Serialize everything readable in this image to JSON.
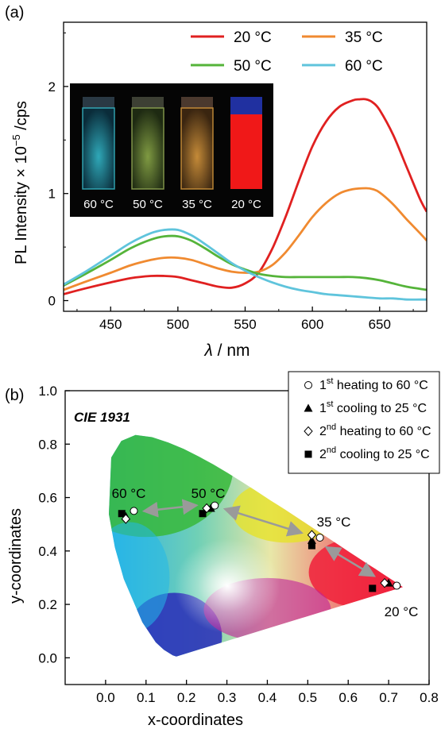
{
  "panel_a": {
    "label": "(a)",
    "inset_labels": [
      "60 °C",
      "50 °C",
      "35 °C",
      "20 °C"
    ],
    "colors": {
      "inset_bg": "#050505"
    }
  },
  "panel_b": {
    "label": "(b)",
    "cie_label": "CIE 1931",
    "temperature_labels": [
      "60 °C",
      "50 °C",
      "35 °C",
      "20 °C"
    ],
    "legend": [
      {
        "marker": "open-circle",
        "pre": "1",
        "sup": "st",
        "post": " heating to 60 °C"
      },
      {
        "marker": "filled-triangle",
        "pre": "1",
        "sup": "st",
        "post": " cooling to 25 °C"
      },
      {
        "marker": "open-diamond",
        "pre": "2",
        "sup": "nd",
        "post": " heating to 60 °C"
      },
      {
        "marker": "filled-square",
        "pre": "2",
        "sup": "nd",
        "post": " cooling to 25 °C"
      }
    ]
  },
  "chart_data": [
    {
      "type": "line",
      "xlabel_symbol": "λ",
      "xlabel_rest": " / nm",
      "ylabel_pre": "PL Intensity × 10",
      "ylabel_sup": "−5",
      "ylabel_post": " /cps",
      "xlim": [
        415,
        685
      ],
      "ylim": [
        -0.1,
        2.6
      ],
      "xticks": [
        450,
        500,
        550,
        600,
        650
      ],
      "yticks": [
        0,
        1,
        2
      ],
      "legend_position": "top-right",
      "series": [
        {
          "name": "20 °C",
          "color": "#e02020",
          "x": [
            415,
            430,
            450,
            465,
            480,
            490,
            500,
            510,
            520,
            530,
            540,
            550,
            560,
            570,
            580,
            590,
            600,
            610,
            620,
            630,
            635,
            640,
            645,
            650,
            660,
            670,
            680,
            685
          ],
          "y": [
            0.06,
            0.11,
            0.17,
            0.21,
            0.23,
            0.23,
            0.22,
            0.19,
            0.16,
            0.13,
            0.12,
            0.16,
            0.26,
            0.48,
            0.78,
            1.12,
            1.44,
            1.67,
            1.81,
            1.87,
            1.88,
            1.88,
            1.85,
            1.78,
            1.55,
            1.25,
            0.95,
            0.83
          ]
        },
        {
          "name": "35 °C",
          "color": "#f08a30",
          "x": [
            415,
            430,
            450,
            465,
            480,
            490,
            500,
            510,
            520,
            530,
            540,
            550,
            560,
            570,
            580,
            590,
            600,
            610,
            620,
            630,
            640,
            645,
            650,
            660,
            670,
            680,
            685
          ],
          "y": [
            0.1,
            0.17,
            0.26,
            0.33,
            0.38,
            0.4,
            0.4,
            0.38,
            0.34,
            0.3,
            0.27,
            0.26,
            0.27,
            0.33,
            0.45,
            0.61,
            0.78,
            0.91,
            1.0,
            1.04,
            1.05,
            1.04,
            1.01,
            0.9,
            0.76,
            0.63,
            0.56
          ]
        },
        {
          "name": "50 °C",
          "color": "#55b43a",
          "x": [
            415,
            430,
            450,
            465,
            480,
            490,
            500,
            510,
            520,
            530,
            540,
            550,
            560,
            570,
            580,
            590,
            600,
            610,
            620,
            630,
            640,
            650,
            660,
            670,
            680,
            685
          ],
          "y": [
            0.14,
            0.24,
            0.38,
            0.49,
            0.57,
            0.6,
            0.6,
            0.56,
            0.49,
            0.41,
            0.34,
            0.29,
            0.25,
            0.23,
            0.22,
            0.22,
            0.22,
            0.22,
            0.22,
            0.22,
            0.21,
            0.19,
            0.16,
            0.13,
            0.11,
            0.1
          ]
        },
        {
          "name": "60 °C",
          "color": "#5fc4dc",
          "x": [
            415,
            430,
            450,
            465,
            480,
            490,
            500,
            510,
            520,
            530,
            540,
            550,
            560,
            570,
            580,
            590,
            600,
            610,
            620,
            630,
            640,
            650,
            660,
            670,
            680,
            685
          ],
          "y": [
            0.15,
            0.26,
            0.42,
            0.54,
            0.63,
            0.66,
            0.66,
            0.61,
            0.53,
            0.44,
            0.35,
            0.28,
            0.22,
            0.17,
            0.13,
            0.1,
            0.08,
            0.06,
            0.05,
            0.04,
            0.03,
            0.02,
            0.02,
            0.01,
            0.01,
            0.01
          ]
        }
      ]
    },
    {
      "type": "scatter",
      "xlabel": "x-coordinates",
      "ylabel": "y-coordinates",
      "xlim": [
        -0.1,
        0.8
      ],
      "ylim": [
        -0.1,
        1.0
      ],
      "xticks": [
        "0.0",
        "0.1",
        "0.2",
        "0.3",
        "0.4",
        "0.5",
        "0.6",
        "0.7",
        "0.8"
      ],
      "yticks": [
        "0.0",
        "0.2",
        "0.4",
        "0.6",
        "0.8",
        "1.0"
      ],
      "legend_position": "top-right",
      "series": [
        {
          "name": "1st heating to 60 °C",
          "marker": "open-circle",
          "points": [
            [
              0.72,
              0.27
            ],
            [
              0.53,
              0.45
            ],
            [
              0.27,
              0.57
            ],
            [
              0.07,
              0.55
            ]
          ]
        },
        {
          "name": "1st cooling to 25 °C",
          "marker": "filled-triangle",
          "points": [
            [
              0.7,
              0.28
            ],
            [
              0.51,
              0.44
            ],
            [
              0.26,
              0.56
            ],
            [
              0.05,
              0.53
            ]
          ]
        },
        {
          "name": "2nd heating to 60 °C",
          "marker": "open-diamond",
          "points": [
            [
              0.69,
              0.28
            ],
            [
              0.51,
              0.46
            ],
            [
              0.25,
              0.56
            ],
            [
              0.05,
              0.52
            ]
          ]
        },
        {
          "name": "2nd cooling to 25 °C",
          "marker": "filled-square",
          "points": [
            [
              0.66,
              0.26
            ],
            [
              0.51,
              0.42
            ],
            [
              0.24,
              0.54
            ],
            [
              0.04,
              0.54
            ]
          ]
        }
      ]
    }
  ]
}
